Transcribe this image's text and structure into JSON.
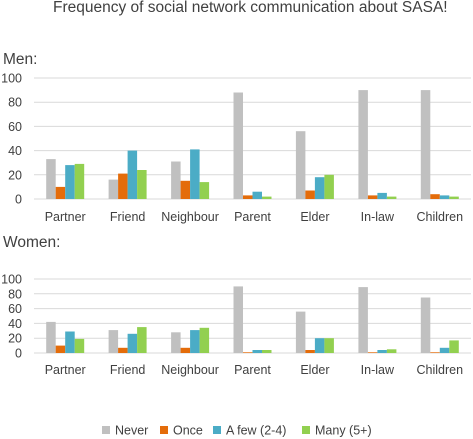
{
  "title": "Frequency of social network communication about SASA!",
  "colors": {
    "Never": "#c0c0c0",
    "Once": "#e46c0a",
    "A few (2-4)": "#4bacc6",
    "Many (5+)": "#92d050",
    "gridline": "#d9d9d9",
    "text": "#404040"
  },
  "legend": {
    "position": "bottom",
    "entries": [
      "Never",
      "Once",
      "A few (2-4)",
      "Many (5+)"
    ]
  },
  "chart_data": [
    {
      "type": "bar",
      "panel_label": "Men:",
      "categories": [
        "Partner",
        "Friend",
        "Neighbour",
        "Parent",
        "Elder",
        "In-law",
        "Children"
      ],
      "ylim": [
        0,
        100
      ],
      "yticks": [
        0,
        20,
        40,
        60,
        80,
        100
      ],
      "grid": true,
      "series": [
        {
          "name": "Never",
          "values": [
            33,
            16,
            31,
            88,
            56,
            90,
            90
          ]
        },
        {
          "name": "Once",
          "values": [
            10,
            21,
            15,
            3,
            7,
            3,
            4
          ]
        },
        {
          "name": "A few (2-4)",
          "values": [
            28,
            40,
            41,
            6,
            18,
            5,
            3
          ]
        },
        {
          "name": "Many (5+)",
          "values": [
            29,
            24,
            14,
            2,
            20,
            2,
            2
          ]
        }
      ]
    },
    {
      "type": "bar",
      "panel_label": "Women:",
      "categories": [
        "Partner",
        "Friend",
        "Neighbour",
        "Parent",
        "Elder",
        "In-law",
        "Children"
      ],
      "ylim": [
        0,
        100
      ],
      "yticks": [
        0,
        20,
        40,
        60,
        80,
        100
      ],
      "grid": true,
      "series": [
        {
          "name": "Never",
          "values": [
            42,
            31,
            28,
            90,
            56,
            89,
            75
          ]
        },
        {
          "name": "Once",
          "values": [
            10,
            7,
            7,
            1,
            4,
            1,
            1
          ]
        },
        {
          "name": "A few (2-4)",
          "values": [
            29,
            26,
            31,
            4,
            20,
            4,
            7
          ]
        },
        {
          "name": "Many (5+)",
          "values": [
            19,
            35,
            34,
            4,
            20,
            5,
            17
          ]
        }
      ]
    }
  ]
}
